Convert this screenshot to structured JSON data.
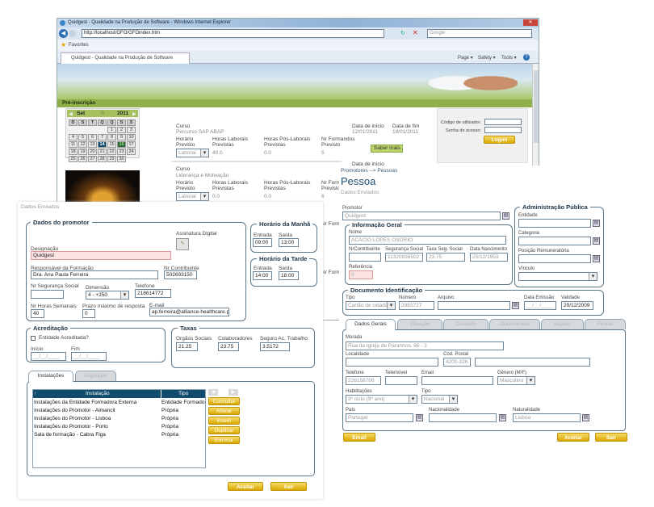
{
  "browser": {
    "title": "Quidgest - Qualidade na Produção de Software - Windows Internet Explorer",
    "url": "http://localhost/GFO/GFOindex.htm",
    "search_placeholder": "Google",
    "favorites": "Favorites",
    "tab": "Quidgest - Qualidade na Produção de Software",
    "cmd": {
      "page": "Page ▾",
      "safety": "Safety ▾",
      "tools": "Tools ▾"
    }
  },
  "portal": {
    "section": "Pré-inscrição",
    "calendar": {
      "month": "Set",
      "year": "2011",
      "weekdays": [
        "D",
        "S",
        "T",
        "Q",
        "Q",
        "S",
        "S"
      ],
      "weeks": [
        [
          "",
          "",
          "",
          "",
          "1",
          "2",
          "3"
        ],
        [
          "4",
          "5",
          "6",
          "7",
          "8",
          "9",
          "10"
        ],
        [
          "11",
          "12",
          "13",
          "14",
          "15",
          "16",
          "17"
        ],
        [
          "18",
          "19",
          "20",
          "21",
          "22",
          "23",
          "24"
        ],
        [
          "25",
          "26",
          "27",
          "28",
          "29",
          "30",
          ""
        ]
      ],
      "selected": "14",
      "highlight": "16"
    },
    "labels": {
      "curso": "Curso",
      "inicio": "Data de início",
      "fim": "Data de fim",
      "horario": "Horário Previsto",
      "laborais": "Horas Laborais Previstas",
      "pos": "Horas Pós-Laborais Previstas",
      "formandos": "Nr Formandos Previsto",
      "saber": "Saber mais"
    },
    "courses": [
      {
        "name": "Percurso SAP ABAP",
        "inicio": "12/01/2011",
        "fim": "18/01/2011",
        "horario": "Laboral",
        "laborais": "40.0",
        "pos": "0.0",
        "formandos": "5"
      },
      {
        "name": "Liderança e Motivação",
        "horario": "Laboral",
        "laborais": "0.0",
        "pos": "0.0",
        "formandos": "6"
      }
    ],
    "login": {
      "user": "Código de utilizador:",
      "pass": "Senha de acesso:",
      "button": "Logon"
    }
  },
  "left": {
    "subtitle": "Dados Enviados",
    "promotor": {
      "legend": "Dados do promotor",
      "assinatura": "Assinatura Digital",
      "designacao_l": "Designação",
      "designacao": "Quidgest",
      "responsavel_l": "Responsável da Formação",
      "responsavel": "Dra. Ana Paula Ferreira",
      "contrib_l": "Nr Contribuinte",
      "contrib": "502693150",
      "segsocial_l": "Nr Segurança Social",
      "segsocial": "",
      "dimensao_l": "Dimensão",
      "dimensao": "4 - +250",
      "telefone_l": "Telefone",
      "telefone": "218614772",
      "horas_l": "Nr Horas Semanais",
      "horas": "40",
      "prazo_l": "Prazo máximo de resposta",
      "prazo": "0",
      "email_l": "E-mail",
      "email": "ap.ferreira@alliance-healthcare.pt"
    },
    "manha": {
      "legend": "Horário da Manhã",
      "entrada_l": "Entrada",
      "saida_l": "Saída",
      "entrada": "09:00",
      "saida": "13:00"
    },
    "tarde": {
      "legend": "Horário da Tarde",
      "entrada_l": "Entrada",
      "saida_l": "Saída",
      "entrada": "14:00",
      "saida": "18:00"
    },
    "acred": {
      "legend": "Acreditação",
      "check": "Entidade Acreditada?",
      "checked": false,
      "inicio_l": "Início",
      "fim_l": "Fim",
      "inicio": "__/__/____",
      "fim": "__/__/____"
    },
    "taxas": {
      "legend": "Taxas",
      "orgaos_l": "Orgãos Sociais",
      "colab_l": "Colaboradores",
      "seguro_l": "Seguro Ac. Trabalho",
      "orgaos": "21.25",
      "colab": "23.75",
      "seguro": "3.5172"
    },
    "tabs": [
      "Instalações",
      "Logotipos"
    ],
    "table": {
      "headers": [
        "Instalação",
        "Tipo"
      ],
      "rows": [
        [
          "Instalações da Entidade Formadora Externa",
          "Entidade Formadora"
        ],
        [
          "Instalações do Promotor - Almancil",
          "Própria"
        ],
        [
          "Instalações do Promotor - Lisboa",
          "Própria"
        ],
        [
          "Instalações do Promotor - Porto",
          "Própria"
        ],
        [
          "Sala de formação - Cabra Figa",
          "Própria"
        ]
      ]
    },
    "actions": [
      "Consultar",
      "Alterar",
      "Inserir",
      "Duplicar",
      "Eliminar"
    ],
    "aceitar": "Aceitar",
    "sair": "Sair"
  },
  "right": {
    "breadcrumb": "Promotores --> Pessoas",
    "title": "Pessoa",
    "subtitle": "Dados Enviados",
    "promotor_l": "Promotor",
    "promotor": "Quidgest",
    "geral": {
      "legend": "Informação Geral",
      "nome_l": "Nome",
      "nome": "ACACIO LOPES OSORIO",
      "contrib_l": "NrContribuinte",
      "seg_l": "Segurança Social",
      "taxa_l": "Taxa Seg. Social",
      "nasc_l": "Data Nascimento",
      "contrib": "",
      "seg": "11320939502",
      "taxa": "23.75",
      "nasc": "25/12/1953",
      "ref_l": "Referência",
      "ref": "0"
    },
    "admin": {
      "legend": "Administração Pública",
      "entidade": "Entidade",
      "categoria": "Categoria",
      "posicao": "Posição Remuneratória",
      "vinculo": "Vínculo"
    },
    "doc": {
      "legend": "Documento Identificação",
      "tipo_l": "Tipo",
      "numero_l": "Número",
      "arquivo_l": "Arquivo",
      "emissao_l": "Data Emissão",
      "validade_l": "Validade",
      "tipo": "Cartão de cidadão",
      "numero": "2983727",
      "arquivo": "",
      "emissao": "__/__/____",
      "validade": "20/12/2009"
    },
    "tabs": [
      "Dados Gerais",
      "Situação",
      "Contrato",
      "Documentos",
      "Acções",
      "Fichas"
    ],
    "gerais": {
      "morada_l": "Morada",
      "morada": "Rua da Igreja de Paranhos, 86 - 2",
      "localidade_l": "Localidade",
      "localidade": "",
      "cp_l": "Cód. Postal",
      "cp": "4200-326",
      "telefone_l": "Telefone",
      "telefone": "226158700",
      "telemovel_l": "Telemóvel",
      "email_l": "Email",
      "genero_l": "Género (M/F)",
      "genero": "Masculino",
      "habil_l": "Habilitações",
      "habil": "3º ciclo (9º ano)",
      "tipo_l": "Tipo",
      "tipo": "Nacional",
      "pais_l": "País",
      "pais": "Portugal",
      "nac_l": "Nacionalidade",
      "nac": "",
      "nat_l": "Naturalidade",
      "nat": "Lisboa"
    },
    "email_btn": "Email",
    "aceitar": "Aceitar",
    "sair": "Sair"
  },
  "colors": {
    "accent_gold": "#e0b000",
    "table_header": "#0f4c6e",
    "portal_green": "#8db04a"
  }
}
